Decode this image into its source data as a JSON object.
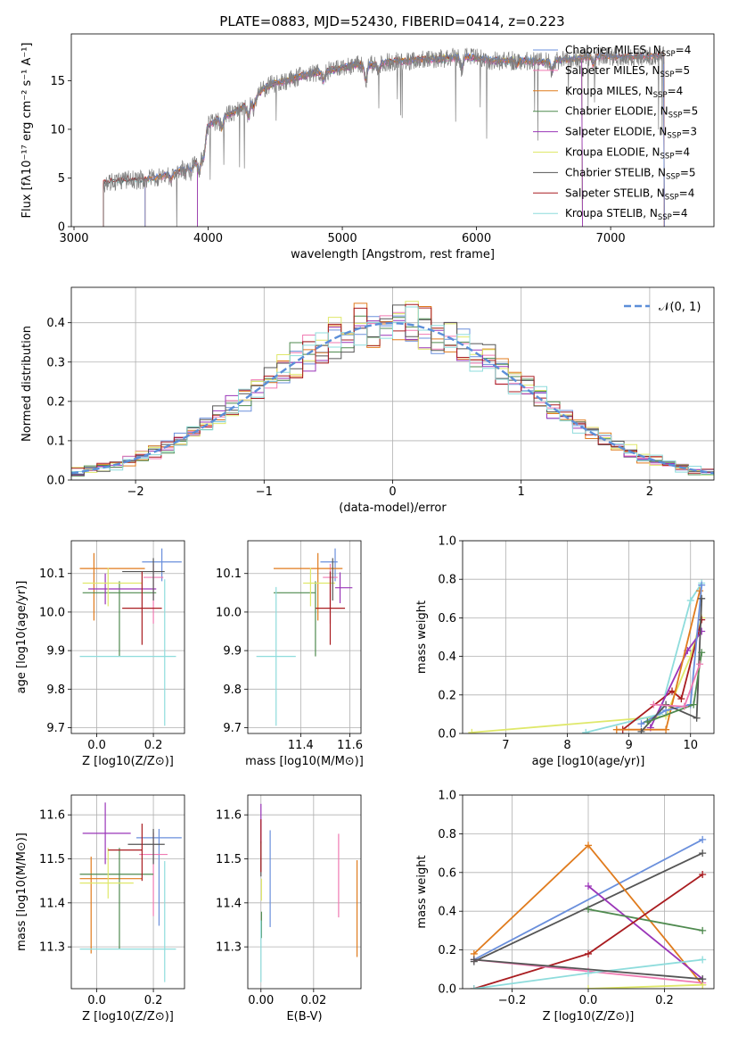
{
  "figure": {
    "title": "PLATE=0883, MJD=52430, FIBERID=0414, z=0.223",
    "palette": {
      "Chabrier MILES": "#6a8fdc",
      "Salpeter MILES": "#f07ab2",
      "Kroupa MILES": "#e07b1d",
      "Chabrier ELODIE": "#4f8a4f",
      "Salpeter ELODIE": "#9a35b8",
      "Kroupa ELODIE": "#dfe86a",
      "Chabrier STELIB": "#555555",
      "Salpeter STELIB": "#a91c20",
      "Kroupa STELIB": "#8edcdc",
      "data": "#808080",
      "normal": "#5b8ed8"
    }
  },
  "chart_data": [
    {
      "id": "spectrum",
      "type": "line",
      "title": "PLATE=0883, MJD=52430, FIBERID=0414, z=0.223",
      "xlabel": "wavelength [Angstrom, rest frame]",
      "ylabel": "Flux [fλ10⁻¹⁷ erg cm⁻² s⁻¹ A⁻¹]",
      "xlim": [
        2980,
        7770
      ],
      "ylim": [
        0,
        19.8
      ],
      "xticks": [
        "3000",
        "4000",
        "5000",
        "6000",
        "7000"
      ],
      "yticks": [
        "0",
        "5",
        "10",
        "15"
      ],
      "grid": false,
      "legend_position": "right",
      "legend": [
        "Chabrier MILES, N_SSP=4",
        "Salpeter MILES, N_SSP=5",
        "Kroupa MILES, N_SSP=4",
        "Chabrier ELODIE, N_SSP=5",
        "Salpeter ELODIE, N_SSP=3",
        "Kroupa ELODIE, N_SSP=4",
        "Chabrier STELIB, N_SSP=5",
        "Salpeter STELIB, N_SSP=4",
        "Kroupa STELIB, N_SSP=4"
      ],
      "observed_continuum": {
        "x": [
          3220,
          3300,
          3400,
          3500,
          3600,
          3700,
          3800,
          3900,
          3950,
          4000,
          4100,
          4200,
          4300,
          4400,
          4500,
          4600,
          4700,
          4800,
          4900,
          5000,
          5100,
          5200,
          5300,
          5400,
          5500,
          5600,
          5700,
          5800,
          5900,
          6000,
          6100,
          6200,
          6300,
          6400,
          6500,
          6600,
          6700,
          6800,
          6900,
          7000,
          7100,
          7200,
          7300,
          7400
        ],
        "y": [
          4.5,
          4.7,
          4.8,
          4.8,
          5.0,
          5.3,
          5.8,
          6.5,
          7.5,
          10.4,
          11.2,
          11.8,
          12.6,
          14.0,
          14.8,
          15.0,
          15.5,
          15.8,
          16.0,
          16.3,
          16.6,
          16.6,
          16.8,
          17.0,
          17.0,
          17.2,
          17.2,
          17.3,
          17.5,
          17.3,
          17.1,
          17.0,
          17.1,
          17.0,
          16.9,
          17.1,
          17.2,
          17.4,
          17.5,
          17.5,
          17.4,
          17.4,
          17.5,
          17.6
        ]
      },
      "model_ranges": [
        {
          "name": "Chabrier MILES",
          "start": 3530,
          "end": 7400
        },
        {
          "name": "Salpeter MILES",
          "start": 3530,
          "end": 7400
        },
        {
          "name": "Kroupa MILES",
          "start": 3530,
          "end": 7400
        },
        {
          "name": "Chabrier ELODIE",
          "start": 3920,
          "end": 6790
        },
        {
          "name": "Salpeter ELODIE",
          "start": 3920,
          "end": 6790
        },
        {
          "name": "Kroupa ELODIE",
          "start": 3920,
          "end": 6790
        },
        {
          "name": "Chabrier STELIB",
          "start": 3220,
          "end": 7400
        },
        {
          "name": "Salpeter STELIB",
          "start": 3220,
          "end": 7400
        },
        {
          "name": "Kroupa STELIB",
          "start": 3220,
          "end": 7400
        }
      ]
    },
    {
      "id": "residuals",
      "type": "line",
      "xlabel": "(data-model)/error",
      "ylabel": "Normed distribution",
      "xlim": [
        -2.5,
        2.5
      ],
      "ylim": [
        0,
        0.49
      ],
      "xticks": [
        -2,
        -1,
        0,
        1,
        2
      ],
      "yticks": [
        "0.0",
        "0.1",
        "0.2",
        "0.3",
        "0.4"
      ],
      "grid": true,
      "legend_position": "top-right",
      "legend": [
        "𝒩(0, 1)"
      ],
      "bin_width": 0.1
    },
    {
      "id": "age-vs-z",
      "type": "scatter",
      "xlabel": "Z [log10(Z/Z⊙)]",
      "ylabel": "age  [log10(age/yr)]",
      "xlim": [
        -0.09,
        0.31
      ],
      "ylim": [
        9.685,
        10.185
      ],
      "xticks": [
        "0.0",
        "0.2"
      ],
      "yticks": [
        "9.7",
        "9.8",
        "9.9",
        "10.0",
        "10.1"
      ],
      "grid": true,
      "points": [
        {
          "model": "Chabrier MILES",
          "x": 0.23,
          "y": 10.13,
          "xerr": [
            0.07,
            0.07
          ],
          "yerr": [
            0.05,
            0.035
          ]
        },
        {
          "model": "Salpeter MILES",
          "x": 0.2,
          "y": 10.09,
          "xerr": [
            0.035,
            0.035
          ],
          "yerr": [
            0.12,
            0.035
          ]
        },
        {
          "model": "Kroupa MILES",
          "x": -0.01,
          "y": 10.113,
          "xerr": [
            0.05,
            0.18
          ],
          "yerr": [
            0.135,
            0.04
          ]
        },
        {
          "model": "Chabrier ELODIE",
          "x": 0.08,
          "y": 10.05,
          "xerr": [
            0.13,
            0.13
          ],
          "yerr": [
            0.165,
            0.03
          ]
        },
        {
          "model": "Salpeter ELODIE",
          "x": 0.03,
          "y": 10.06,
          "xerr": [
            0.06,
            0.18
          ],
          "yerr": [
            0.04,
            0.04
          ]
        },
        {
          "model": "Kroupa ELODIE",
          "x": 0.04,
          "y": 10.075,
          "xerr": [
            0.09,
            0.12
          ],
          "yerr": [
            0.06,
            0.04
          ]
        },
        {
          "model": "Chabrier STELIB",
          "x": 0.2,
          "y": 10.105,
          "xerr": [
            0.11,
            0.04
          ],
          "yerr": [
            0.075,
            0.035
          ]
        },
        {
          "model": "Salpeter STELIB",
          "x": 0.16,
          "y": 10.01,
          "xerr": [
            0.07,
            0.07
          ],
          "yerr": [
            0.095,
            0.095
          ]
        },
        {
          "model": "Kroupa STELIB",
          "x": 0.24,
          "y": 9.885,
          "xerr": [
            0.3,
            0.04
          ],
          "yerr": [
            0.18,
            0.2
          ]
        }
      ]
    },
    {
      "id": "age-vs-mass",
      "type": "scatter",
      "xlabel": "mass [log10(M/M⊙)]",
      "ylabel": "",
      "xlim": [
        11.185,
        11.645
      ],
      "ylim": [
        9.685,
        10.185
      ],
      "xticks": [
        "11.4",
        "11.6"
      ],
      "yticks": [
        "9.7",
        "9.8",
        "9.9",
        "10.0",
        "10.1"
      ],
      "grid": true,
      "points": [
        {
          "model": "Chabrier MILES",
          "x": 11.54,
          "y": 10.13,
          "xerr": [
            0.06,
            0.01
          ],
          "yerr": [
            0.05,
            0.035
          ]
        },
        {
          "model": "Salpeter MILES",
          "x": 11.52,
          "y": 10.09,
          "xerr": [
            0.03,
            0.03
          ],
          "yerr": [
            0.12,
            0.035
          ]
        },
        {
          "model": "Kroupa MILES",
          "x": 11.47,
          "y": 10.113,
          "xerr": [
            0.18,
            0.1
          ],
          "yerr": [
            0.135,
            0.04
          ]
        },
        {
          "model": "Chabrier ELODIE",
          "x": 11.46,
          "y": 10.05,
          "xerr": [
            0.17,
            0.0
          ],
          "yerr": [
            0.165,
            0.03
          ]
        },
        {
          "model": "Salpeter ELODIE",
          "x": 11.56,
          "y": 10.063,
          "xerr": [
            0.02,
            0.05
          ],
          "yerr": [
            0.04,
            0.04
          ]
        },
        {
          "model": "Kroupa ELODIE",
          "x": 11.44,
          "y": 10.075,
          "xerr": [
            0.03,
            0.1
          ],
          "yerr": [
            0.06,
            0.04
          ]
        },
        {
          "model": "Chabrier STELIB",
          "x": 11.53,
          "y": 10.105,
          "xerr": [
            0.0,
            0.0
          ],
          "yerr": [
            0.075,
            0.035
          ]
        },
        {
          "model": "Salpeter STELIB",
          "x": 11.52,
          "y": 10.01,
          "xerr": [
            0.06,
            0.06
          ],
          "yerr": [
            0.095,
            0.095
          ]
        },
        {
          "model": "Kroupa STELIB",
          "x": 11.3,
          "y": 9.885,
          "xerr": [
            0.08,
            0.08
          ],
          "yerr": [
            0.18,
            0.18
          ]
        }
      ]
    },
    {
      "id": "weight-vs-age",
      "type": "line",
      "xlabel": "age  [log10(age/yr)]",
      "ylabel": "mass weight",
      "xlim": [
        6.3,
        10.38
      ],
      "ylim": [
        0,
        1.0
      ],
      "xticks": [
        "7",
        "8",
        "9",
        "10"
      ],
      "yticks": [
        "0.0",
        "0.2",
        "0.4",
        "0.6",
        "0.8",
        "1.0"
      ],
      "grid": true,
      "series": [
        {
          "model": "Kroupa ELODIE",
          "x": [
            6.45,
            9.6,
            10.0,
            10.18
          ],
          "y": [
            0.005,
            0.09,
            0.4,
            0.6
          ]
        },
        {
          "model": "Kroupa STELIB",
          "x": [
            8.3,
            9.5,
            10.0,
            10.18
          ],
          "y": [
            0.005,
            0.1,
            0.69,
            0.78
          ]
        },
        {
          "model": "Salpeter STELIB",
          "x": [
            8.9,
            9.7,
            9.85,
            10.18
          ],
          "y": [
            0.02,
            0.22,
            0.18,
            0.59
          ]
        },
        {
          "model": "Salpeter ELODIE",
          "x": [
            9.35,
            9.95,
            10.18
          ],
          "y": [
            0.03,
            0.43,
            0.53
          ]
        },
        {
          "model": "Kroupa MILES",
          "x": [
            8.8,
            9.6,
            10.15
          ],
          "y": [
            0.02,
            0.02,
            0.74
          ]
        },
        {
          "model": "Chabrier MILES",
          "x": [
            9.2,
            9.6,
            10.0,
            10.18
          ],
          "y": [
            0.05,
            0.12,
            0.15,
            0.77
          ]
        },
        {
          "model": "Chabrier STELIB",
          "x": [
            9.2,
            9.6,
            10.1,
            10.18
          ],
          "y": [
            0.01,
            0.15,
            0.08,
            0.7
          ]
        },
        {
          "model": "Chabrier ELODIE",
          "x": [
            9.3,
            10.05,
            10.18
          ],
          "y": [
            0.06,
            0.15,
            0.42
          ]
        },
        {
          "model": "Salpeter MILES",
          "x": [
            9.4,
            9.9,
            10.15
          ],
          "y": [
            0.15,
            0.14,
            0.36
          ]
        }
      ]
    },
    {
      "id": "mass-vs-z",
      "type": "scatter",
      "xlabel": "Z [log10(Z/Z⊙)]",
      "ylabel": "mass [log10(M/M⊙)]",
      "xlim": [
        -0.09,
        0.31
      ],
      "ylim": [
        11.205,
        11.645
      ],
      "xticks": [
        "0.0",
        "0.2"
      ],
      "yticks": [
        "11.3",
        "11.4",
        "11.5",
        "11.6"
      ],
      "grid": true,
      "points": [
        {
          "model": "Chabrier MILES",
          "x": 0.22,
          "y": 11.548,
          "xerr": [
            0.08,
            0.08
          ],
          "yerr": [
            0.2,
            0.02
          ]
        },
        {
          "model": "Salpeter MILES",
          "x": 0.2,
          "y": 11.51,
          "xerr": [
            0.05,
            0.05
          ],
          "yerr": [
            0.14,
            0.05
          ]
        },
        {
          "model": "Kroupa MILES",
          "x": -0.02,
          "y": 11.455,
          "xerr": [
            0.04,
            0.18
          ],
          "yerr": [
            0.17,
            0.05
          ]
        },
        {
          "model": "Chabrier ELODIE",
          "x": 0.08,
          "y": 11.465,
          "xerr": [
            0.14,
            0.12
          ],
          "yerr": [
            0.17,
            0.06
          ]
        },
        {
          "model": "Salpeter ELODIE",
          "x": 0.03,
          "y": 11.558,
          "xerr": [
            0.08,
            0.09
          ],
          "yerr": [
            0.07,
            0.07
          ]
        },
        {
          "model": "Kroupa ELODIE",
          "x": 0.04,
          "y": 11.445,
          "xerr": [
            0.1,
            0.09
          ],
          "yerr": [
            0.035,
            0.08
          ]
        },
        {
          "model": "Chabrier STELIB",
          "x": 0.2,
          "y": 11.533,
          "xerr": [
            0.09,
            0.04
          ],
          "yerr": [
            0.045,
            0.035
          ]
        },
        {
          "model": "Salpeter STELIB",
          "x": 0.16,
          "y": 11.52,
          "xerr": [
            0.12,
            0.0
          ],
          "yerr": [
            0.07,
            0.06
          ]
        },
        {
          "model": "Kroupa STELIB",
          "x": 0.24,
          "y": 11.295,
          "xerr": [
            0.3,
            0.04
          ],
          "yerr": [
            0.075,
            0.2
          ]
        }
      ]
    },
    {
      "id": "mass-vs-ebv",
      "type": "scatter",
      "xlabel": "E(B-V)",
      "ylabel": "",
      "xlim": [
        -0.005,
        0.038
      ],
      "ylim": [
        11.205,
        11.645
      ],
      "xticks": [
        "0.00",
        "0.02"
      ],
      "yticks": [
        "11.3",
        "11.4",
        "11.5",
        "11.6"
      ],
      "grid": true,
      "points": [
        {
          "model": "Chabrier MILES",
          "x": 0.0035,
          "y": 11.455,
          "xerr": [
            0,
            0
          ],
          "yerr": [
            0.11,
            0.11
          ]
        },
        {
          "model": "Salpeter MILES",
          "x": 0.0295,
          "y": 11.462,
          "xerr": [
            0,
            0
          ],
          "yerr": [
            0.095,
            0.095
          ]
        },
        {
          "model": "Kroupa MILES",
          "x": 0.0365,
          "y": 11.387,
          "xerr": [
            0,
            0
          ],
          "yerr": [
            0.11,
            0.11
          ]
        },
        {
          "model": "Chabrier ELODIE",
          "x": 0.0002,
          "y": 11.35,
          "xerr": [
            0,
            0
          ],
          "yerr": [
            0.03,
            0.03
          ]
        },
        {
          "model": "Salpeter ELODIE",
          "x": 0.0,
          "y": 11.58,
          "xerr": [
            0,
            0
          ],
          "yerr": [
            0.045,
            0.045
          ]
        },
        {
          "model": "Kroupa ELODIE",
          "x": 0.0002,
          "y": 11.43,
          "xerr": [
            0,
            0
          ],
          "yerr": [
            0.025,
            0.025
          ]
        },
        {
          "model": "Chabrier STELIB",
          "x": 0.0,
          "y": 11.5,
          "xerr": [
            0,
            0
          ],
          "yerr": [
            0.04,
            0.04
          ]
        },
        {
          "model": "Salpeter STELIB",
          "x": 0.0,
          "y": 11.53,
          "xerr": [
            0,
            0
          ],
          "yerr": [
            0.06,
            0.06
          ]
        },
        {
          "model": "Kroupa STELIB",
          "x": 0.0,
          "y": 11.29,
          "xerr": [
            0,
            0
          ],
          "yerr": [
            0.07,
            0.07
          ]
        }
      ]
    },
    {
      "id": "weight-vs-z",
      "type": "line",
      "xlabel": "Z [log10(Z/Z⊙)]",
      "ylabel": "mass weight",
      "xlim": [
        -0.33,
        0.33
      ],
      "ylim": [
        0,
        1.0
      ],
      "xticks": [
        "−0.2",
        "0.0",
        "0.2"
      ],
      "yticks": [
        "0.0",
        "0.2",
        "0.4",
        "0.6",
        "0.8",
        "1.0"
      ],
      "grid": true,
      "series": [
        {
          "model": "Chabrier MILES",
          "x": [
            -0.3,
            0.3
          ],
          "y": [
            0.15,
            0.77
          ]
        },
        {
          "model": "Chabrier STELIB",
          "x": [
            -0.3,
            0.3
          ],
          "y": [
            0.14,
            0.7
          ]
        },
        {
          "model": "Kroupa MILES",
          "x": [
            -0.3,
            0.0,
            0.3
          ],
          "y": [
            0.18,
            0.74,
            0.02
          ]
        },
        {
          "model": "Salpeter ELODIE",
          "x": [
            0.0,
            0.3
          ],
          "y": [
            0.53,
            0.05
          ]
        },
        {
          "model": "Chabrier ELODIE",
          "x": [
            0.0,
            0.3
          ],
          "y": [
            0.41,
            0.3
          ]
        },
        {
          "model": "Salpeter STELIB",
          "x": [
            -0.3,
            0.0,
            0.3
          ],
          "y": [
            0.0,
            0.18,
            0.59
          ]
        },
        {
          "model": "Salpeter MILES",
          "x": [
            -0.3,
            0.0,
            0.3
          ],
          "y": [
            0.15,
            0.09,
            0.03
          ]
        },
        {
          "model": "Kroupa STELIB",
          "x": [
            -0.3,
            0.0,
            0.3
          ],
          "y": [
            0.0,
            0.08,
            0.15
          ]
        },
        {
          "model": "Kroupa ELODIE",
          "x": [
            0.0,
            0.3
          ],
          "y": [
            0.0,
            0.02
          ]
        },
        {
          "model": "Chabrier STELIB",
          "x": [
            -0.3,
            0.3
          ],
          "y": [
            0.15,
            0.05
          ]
        }
      ]
    }
  ]
}
